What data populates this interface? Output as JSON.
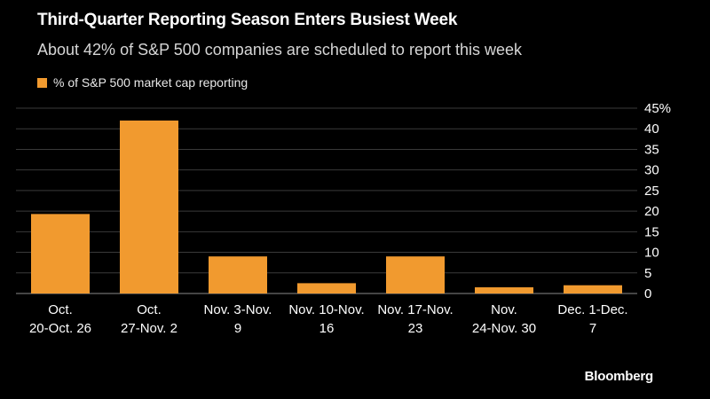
{
  "header": {
    "title": "Third-Quarter Reporting Season Enters Busiest Week",
    "subtitle": "About 42% of S&P 500 companies are scheduled to report this week"
  },
  "brand": "Bloomberg",
  "colors": {
    "bar": "#f19a2f",
    "grid": "#3a3a3a",
    "text": "#ffffff",
    "background": "#000000"
  },
  "chart_data": {
    "type": "bar",
    "categories": [
      [
        "Oct.",
        "20-Oct. 26"
      ],
      [
        "Oct.",
        "27-Nov. 2"
      ],
      [
        "Nov. 3-Nov.",
        "9"
      ],
      [
        "Nov. 10-Nov.",
        "16"
      ],
      [
        "Nov. 17-Nov.",
        "23"
      ],
      [
        "Nov.",
        "24-Nov. 30"
      ],
      [
        "Dec. 1-Dec.",
        "7"
      ]
    ],
    "series": [
      {
        "name": "% of S&P 500 market cap reporting",
        "values": [
          19.3,
          42,
          9,
          2.5,
          9,
          1.5,
          2
        ]
      }
    ],
    "ylim": [
      0,
      45
    ],
    "yticks": [
      0,
      5,
      10,
      15,
      20,
      25,
      30,
      35,
      40,
      45
    ],
    "ytick_labels": [
      "0",
      "5",
      "10",
      "15",
      "20",
      "25",
      "30",
      "35",
      "40",
      "45%"
    ],
    "grid": true,
    "y_axis_side": "right",
    "legend": "top-left"
  }
}
